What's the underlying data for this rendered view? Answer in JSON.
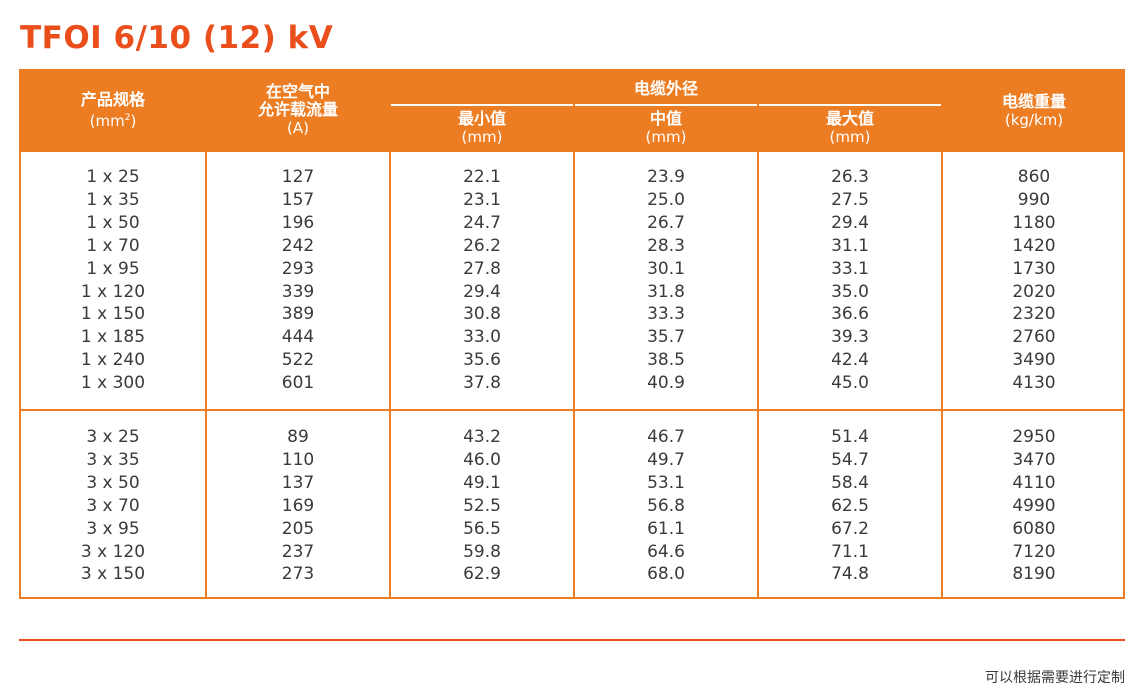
{
  "title": "TFOI 6/10 (12) kV",
  "header": {
    "spec": "产品规格",
    "spec_unit_pre": "(mm",
    "spec_unit_sup": "2",
    "spec_unit_post": ")",
    "ampacity_line1": "在空气中",
    "ampacity_line2": "允许载流量",
    "ampacity_unit": "(A)",
    "diameter_group": "电缆外径",
    "min": "最小值",
    "min_unit": "(mm)",
    "mid": "中值",
    "mid_unit": "(mm)",
    "max": "最大值",
    "max_unit": "(mm)",
    "weight": "电缆重量",
    "weight_unit": "(kg/km)"
  },
  "groups": [
    {
      "spec": [
        "1 x 25",
        "1 x 35",
        "1 x 50",
        "1 x 70",
        "1 x 95",
        "1 x 120",
        "1 x 150",
        "1 x 185",
        "1 x 240",
        "1 x 300"
      ],
      "ampacity": [
        "127",
        "157",
        "196",
        "242",
        "293",
        "339",
        "389",
        "444",
        "522",
        "601"
      ],
      "min": [
        "22.1",
        "23.1",
        "24.7",
        "26.2",
        "27.8",
        "29.4",
        "30.8",
        "33.0",
        "35.6",
        "37.8"
      ],
      "mid": [
        "23.9",
        "25.0",
        "26.7",
        "28.3",
        "30.1",
        "31.8",
        "33.3",
        "35.7",
        "38.5",
        "40.9"
      ],
      "max": [
        "26.3",
        "27.5",
        "29.4",
        "31.1",
        "33.1",
        "35.0",
        "36.6",
        "39.3",
        "42.4",
        "45.0"
      ],
      "weight": [
        "860",
        "990",
        "1180",
        "1420",
        "1730",
        "2020",
        "2320",
        "2760",
        "3490",
        "4130"
      ]
    },
    {
      "spec": [
        "3 x 25",
        "3 x 35",
        "3 x 50",
        "3 x 70",
        "3 x 95",
        "3 x 120",
        "3 x 150"
      ],
      "ampacity": [
        "89",
        "110",
        "137",
        "169",
        "205",
        "237",
        "273"
      ],
      "min": [
        "43.2",
        "46.0",
        "49.1",
        "52.5",
        "56.5",
        "59.8",
        "62.9"
      ],
      "mid": [
        "46.7",
        "49.7",
        "53.1",
        "56.8",
        "61.1",
        "64.6",
        "68.0"
      ],
      "max": [
        "51.4",
        "54.7",
        "58.4",
        "62.5",
        "67.2",
        "71.1",
        "74.8"
      ],
      "weight": [
        "2950",
        "3470",
        "4110",
        "4990",
        "6080",
        "7120",
        "8190"
      ]
    }
  ],
  "footnote": "可以根据需要进行定制",
  "colors": {
    "accent": "#ed7d23",
    "title": "#e94e1b",
    "text": "#3a3a3a"
  }
}
